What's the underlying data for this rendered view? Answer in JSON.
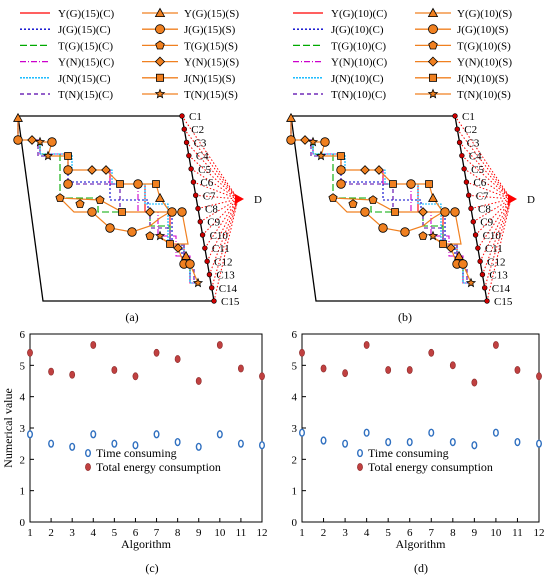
{
  "colors": {
    "Y_G": "#ff0000",
    "J_G": "#0000cc",
    "T_G": "#00aa00",
    "Y_N": "#cc00cc",
    "J_N": "#00b4ff",
    "T_N": "#5500aa",
    "marker_fill": "#f08020",
    "marker_edge": "#000000",
    "time_marker": "#3070c0",
    "energy_marker": "#c04040"
  },
  "captions": [
    "(a)",
    "(b)",
    "(c)",
    "(d)"
  ],
  "panel_a": {
    "legend_left": [
      "Y(G)(15)(C)",
      "J(G)(15)(C)",
      "T(G)(15)(C)",
      "Y(N)(15)(C)",
      "J(N)(15)(C)",
      "T(N)(15)(C)"
    ],
    "legend_right": [
      "Y(G)(15)(S)",
      "J(G)(15)(S)",
      "T(G)(15)(S)",
      "Y(N)(15)(S)",
      "J(N)(15)(S)",
      "T(N)(15)(S)"
    ],
    "nodes": [
      "C1",
      "C2",
      "C3",
      "C4",
      "C5",
      "C6",
      "C7",
      "C8",
      "C9",
      "C10",
      "C11",
      "C12",
      "C13",
      "C14",
      "C15"
    ],
    "depot": "D"
  },
  "panel_b": {
    "legend_left": [
      "Y(G)(10)(C)",
      "J(G)(10)(C)",
      "T(G)(10)(C)",
      "Y(N)(10)(C)",
      "J(N)(10)(C)",
      "T(N)(10)(C)"
    ],
    "legend_right": [
      "Y(G)(10)(S)",
      "J(G)(10)(S)",
      "T(G)(10)(S)",
      "Y(N)(10)(S)",
      "J(N)(10)(S)",
      "T(N)(10)(S)"
    ],
    "nodes": [
      "C1",
      "C2",
      "C3",
      "C4",
      "C5",
      "C6",
      "C7",
      "C8",
      "C9",
      "C10",
      "C11",
      "C12",
      "C13",
      "C14",
      "C15"
    ],
    "depot": "D"
  },
  "chart_data": [
    {
      "type": "scatter",
      "panel": "c",
      "xlabel": "Algorithm",
      "ylabel": "Numerical value",
      "xlim": [
        1,
        12
      ],
      "ylim": [
        0,
        6
      ],
      "xticks": [
        1,
        2,
        3,
        4,
        5,
        6,
        7,
        8,
        9,
        10,
        11,
        12
      ],
      "yticks": [
        0,
        1,
        2,
        3,
        4,
        5,
        6
      ],
      "legend_position": "center-left",
      "series": [
        {
          "name": "Time consuming",
          "x": [
            1,
            2,
            3,
            4,
            5,
            6,
            7,
            8,
            9,
            10,
            11,
            12
          ],
          "values": [
            2.8,
            2.5,
            2.4,
            2.8,
            2.5,
            2.45,
            2.8,
            2.55,
            2.4,
            2.8,
            2.5,
            2.45
          ]
        },
        {
          "name": "Total energy consumption",
          "x": [
            1,
            2,
            3,
            4,
            5,
            6,
            7,
            8,
            9,
            10,
            11,
            12
          ],
          "values": [
            5.4,
            4.8,
            4.7,
            5.65,
            4.85,
            4.65,
            5.4,
            5.2,
            4.5,
            5.65,
            4.9,
            4.65
          ]
        }
      ]
    },
    {
      "type": "scatter",
      "panel": "d",
      "xlabel": "Algorithm",
      "ylabel": "",
      "xlim": [
        1,
        12
      ],
      "ylim": [
        0,
        6
      ],
      "xticks": [
        1,
        2,
        3,
        4,
        5,
        6,
        7,
        8,
        9,
        10,
        11,
        12
      ],
      "yticks": [
        0,
        1,
        2,
        3,
        4,
        5,
        6
      ],
      "legend_position": "center-left",
      "series": [
        {
          "name": "Time consuming",
          "x": [
            1,
            2,
            3,
            4,
            5,
            6,
            7,
            8,
            9,
            10,
            11,
            12
          ],
          "values": [
            2.85,
            2.6,
            2.5,
            2.85,
            2.55,
            2.55,
            2.85,
            2.55,
            2.45,
            2.85,
            2.55,
            2.5
          ]
        },
        {
          "name": "Total energy consumption",
          "x": [
            1,
            2,
            3,
            4,
            5,
            6,
            7,
            8,
            9,
            10,
            11,
            12
          ],
          "values": [
            5.4,
            4.9,
            4.75,
            5.65,
            4.85,
            4.85,
            5.4,
            5.0,
            4.45,
            5.65,
            4.85,
            4.65
          ]
        }
      ]
    }
  ]
}
